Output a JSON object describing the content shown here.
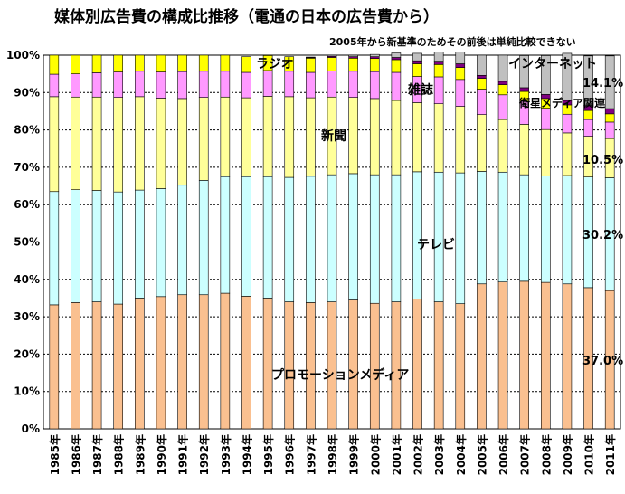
{
  "title": "媒体別広告費の構成比推移（電通の日本の広告費から）",
  "note": "2005年から新基準のためその前後は単純比較できない",
  "chart_data": {
    "type": "bar",
    "stacked": true,
    "categories": [
      "1985年",
      "1986年",
      "1987年",
      "1988年",
      "1989年",
      "1990年",
      "1991年",
      "1992年",
      "1993年",
      "1994年",
      "1995年",
      "1996年",
      "1997年",
      "1998年",
      "1999年",
      "2000年",
      "2001年",
      "2002年",
      "2003年",
      "2004年",
      "2005年",
      "2006年",
      "2007年",
      "2008年",
      "2009年",
      "2010年",
      "2011年"
    ],
    "yticks": [
      "0%",
      "10%",
      "20%",
      "30%",
      "40%",
      "50%",
      "60%",
      "70%",
      "80%",
      "90%",
      "100%"
    ],
    "ylim": [
      0,
      100
    ],
    "grid": true,
    "series": [
      {
        "name": "プロモーションメディア",
        "color": "#fac090",
        "values": [
          33.2,
          33.8,
          34.0,
          33.4,
          35.0,
          35.4,
          35.9,
          35.9,
          36.3,
          35.5,
          35.0,
          34.0,
          33.8,
          34.0,
          34.5,
          33.6,
          34.0,
          34.7,
          34.0,
          33.5,
          38.8,
          39.3,
          39.5,
          39.2,
          38.8,
          37.8,
          37.0
        ]
      },
      {
        "name": "テレビ",
        "color": "#ccffff",
        "values": [
          30.3,
          30.2,
          29.8,
          30.0,
          28.9,
          28.9,
          29.3,
          30.6,
          31.2,
          32.0,
          32.5,
          33.3,
          33.8,
          34.0,
          33.8,
          34.4,
          34.0,
          34.1,
          34.7,
          35.0,
          30.1,
          29.4,
          28.5,
          28.5,
          29.0,
          29.6,
          30.2
        ]
      },
      {
        "name": "新聞",
        "color": "#ffff99",
        "values": [
          25.4,
          24.8,
          25.0,
          25.3,
          25.0,
          24.2,
          23.2,
          22.2,
          21.3,
          21.1,
          21.5,
          21.6,
          21.0,
          20.8,
          20.4,
          20.4,
          19.9,
          18.5,
          18.3,
          17.8,
          15.2,
          14.1,
          13.5,
          12.4,
          11.4,
          10.9,
          10.5
        ]
      },
      {
        "name": "雑誌",
        "color": "#ff99ff",
        "values": [
          6.0,
          6.2,
          6.5,
          6.8,
          6.8,
          7.0,
          7.2,
          7.0,
          6.9,
          6.8,
          6.9,
          6.8,
          6.8,
          7.0,
          7.0,
          7.2,
          7.5,
          7.0,
          7.2,
          7.2,
          6.8,
          6.6,
          6.2,
          5.7,
          5.0,
          4.5,
          4.4
        ]
      },
      {
        "name": "ラジオ",
        "color": "#ffff00",
        "values": [
          5.1,
          5.0,
          4.7,
          4.5,
          4.3,
          4.5,
          4.4,
          4.3,
          4.3,
          4.2,
          4.0,
          3.9,
          3.8,
          3.6,
          3.5,
          3.5,
          3.4,
          3.4,
          3.3,
          3.2,
          2.9,
          2.7,
          2.6,
          2.6,
          2.5,
          2.4,
          2.2
        ]
      },
      {
        "name": "衛星メディア関連",
        "color": "#800080",
        "values": [
          0,
          0,
          0,
          0,
          0,
          0,
          0,
          0,
          0,
          0,
          0,
          0,
          0.2,
          0.3,
          0.4,
          0.5,
          0.6,
          0.8,
          0.9,
          1.0,
          0.8,
          0.9,
          1.0,
          1.1,
          1.2,
          1.3,
          1.4
        ]
      },
      {
        "name": "インターネット",
        "color": "#c0c0c0",
        "values": [
          0,
          0,
          0,
          0,
          0,
          0,
          0,
          0,
          0,
          0,
          0,
          0,
          0.1,
          0.3,
          0.4,
          0.6,
          1.2,
          2.0,
          2.4,
          3.1,
          5.4,
          7.0,
          8.6,
          10.4,
          12.6,
          13.3,
          14.1
        ]
      }
    ],
    "annotations": [
      "37.0%",
      "30.2%",
      "10.5%",
      "14.1%"
    ]
  }
}
